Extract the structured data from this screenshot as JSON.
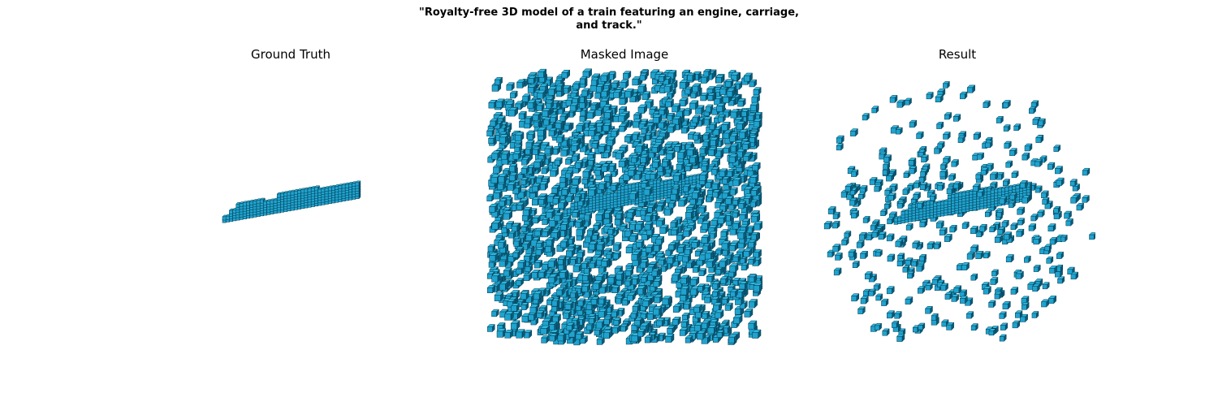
{
  "figure": {
    "title_line1": "\"Royalty-free 3D model of a train featuring an engine, carriage,",
    "title_line2": "and track.\""
  },
  "panels": [
    {
      "title": "Ground Truth"
    },
    {
      "title": "Masked Image"
    },
    {
      "title": "Result"
    }
  ],
  "colors": {
    "voxel_face": "#1fa3cf",
    "voxel_top": "#2fb8e0",
    "voxel_side": "#0b5a78",
    "voxel_edge": "#06394d"
  }
}
